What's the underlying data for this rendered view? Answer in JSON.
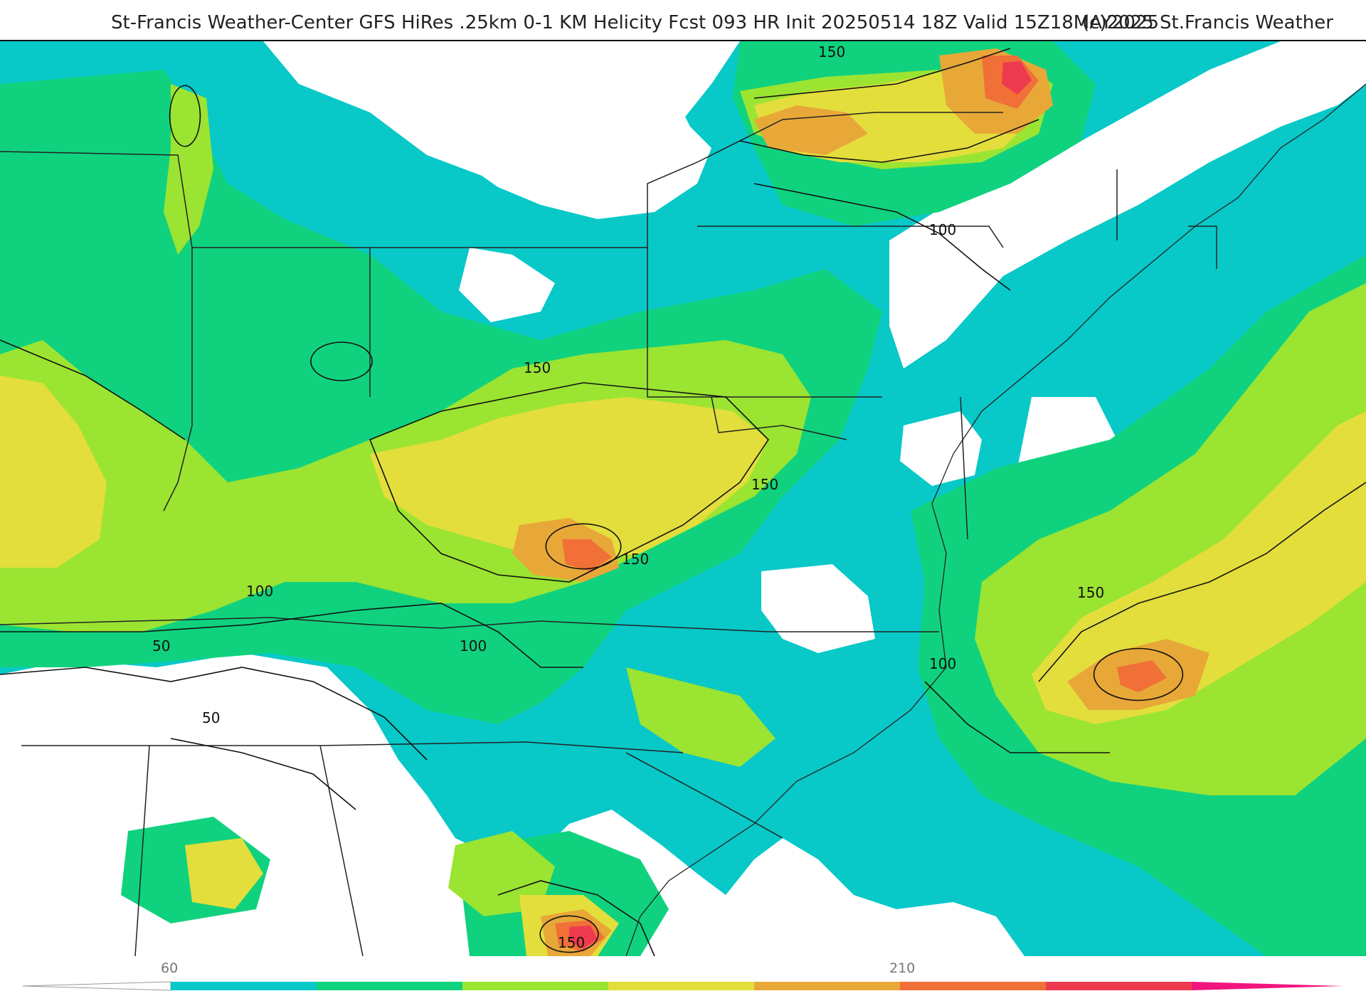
{
  "header": {
    "title": "St-Francis Weather-Center GFS HiRes .25km 0-1 KM Helicity Fcst 093 HR Init 20250514 18Z  Valid 15Z18MAY2025",
    "credit": "(c)2025 St.Francis Weather"
  },
  "colors": {
    "c60": "#08c8c8",
    "c90": "#10d27e",
    "c120": "#9be432",
    "c150": "#e3de3c",
    "c180": "#e8a838",
    "c210": "#f07038",
    "c240": "#ee3a4e",
    "c270": "#f2157e",
    "contour": "#111111",
    "border": "#222222",
    "county": "#b4b4b4"
  },
  "colorbar": {
    "tick_60": "60",
    "tick_210": "210"
  },
  "contour_labels": {
    "l1": "150",
    "l2": "100",
    "l3": "150",
    "l4": "150",
    "l5": "150",
    "l6": "100",
    "l7": "50",
    "l8": "100",
    "l9": "50",
    "l10": "150",
    "l11": "100",
    "l12": "150"
  }
}
